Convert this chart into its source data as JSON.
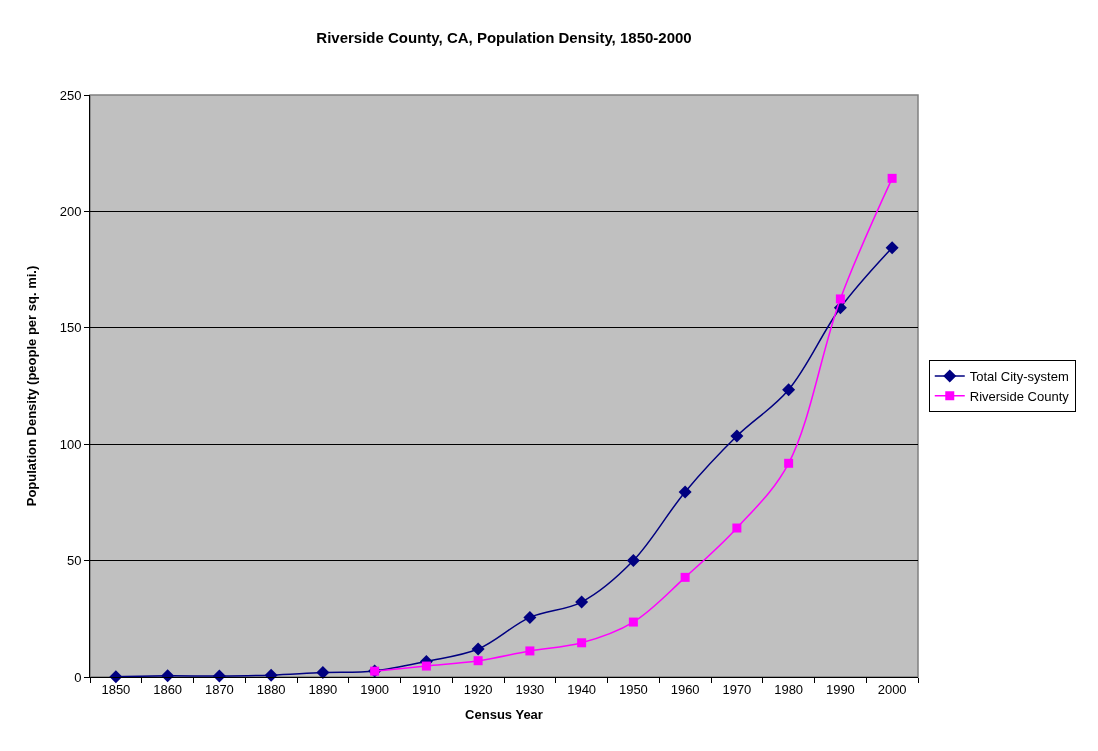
{
  "chart_data": {
    "type": "line",
    "title": "Riverside County, CA, Population Density, 1850-2000",
    "xlabel": "Census Year",
    "ylabel": "Population Density (people per sq. mi.)",
    "categories": [
      "1850",
      "1860",
      "1870",
      "1880",
      "1890",
      "1900",
      "1910",
      "1920",
      "1930",
      "1940",
      "1950",
      "1960",
      "1970",
      "1980",
      "1990",
      "2000"
    ],
    "series": [
      {
        "name": "Total City-system",
        "color": "#000080",
        "marker": "diamond",
        "values": [
          0.1,
          0.5,
          0.4,
          0.8,
          1.9,
          2.6,
          6.7,
          12,
          25.6,
          32.2,
          50,
          79.5,
          103.5,
          123.4,
          158.6,
          184.4
        ]
      },
      {
        "name": "Riverside County",
        "color": "#ff00ff",
        "marker": "square",
        "values": [
          null,
          null,
          null,
          null,
          null,
          2.5,
          4.7,
          7,
          11.2,
          14.7,
          23.6,
          42.8,
          64,
          91.8,
          162.4,
          214.2
        ]
      }
    ],
    "ylim": [
      0,
      250
    ],
    "yticks": [
      0,
      50,
      100,
      150,
      200,
      250
    ],
    "grid": "y",
    "legend": "right",
    "line_style": "solid"
  }
}
